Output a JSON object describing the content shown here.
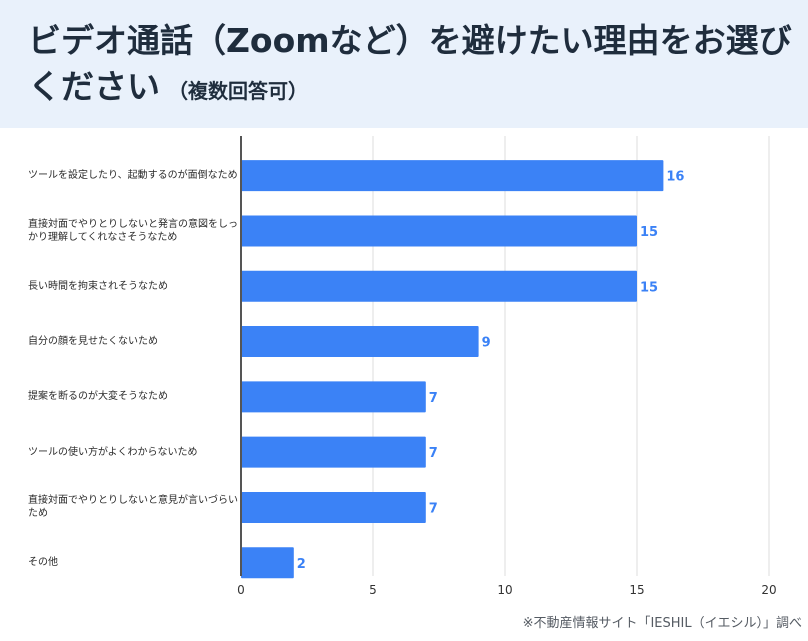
{
  "title": "ビデオ通話（Zoomなど）を避けたい理由をお選びください",
  "subtitle": "（複数回答可）",
  "source": "※不動産情報サイト「IESHIL（イエシル）」調べ",
  "colors": {
    "bar": "#3b82f6",
    "label": "#3b82f6",
    "header_bg": "#e9f1fb",
    "grid": "#dddddd"
  },
  "chart_data": {
    "type": "bar",
    "orientation": "horizontal",
    "categories": [
      "ツールを設定したり、起動するのが面倒なため",
      "直接対面でやりとりしないと発言の意図をしっかり理解してくれなさそうなため",
      "長い時間を拘束されそうなため",
      "自分の顔を見せたくないため",
      "提案を断るのが大変そうなため",
      "ツールの使い方がよくわからないため",
      "直接対面でやりとりしないと意見が言いづらいため",
      "その他"
    ],
    "values": [
      16,
      15,
      15,
      9,
      7,
      7,
      7,
      2
    ],
    "xlim": [
      0,
      20
    ],
    "xticks": [
      0,
      5,
      10,
      15,
      20
    ],
    "grid": true
  }
}
